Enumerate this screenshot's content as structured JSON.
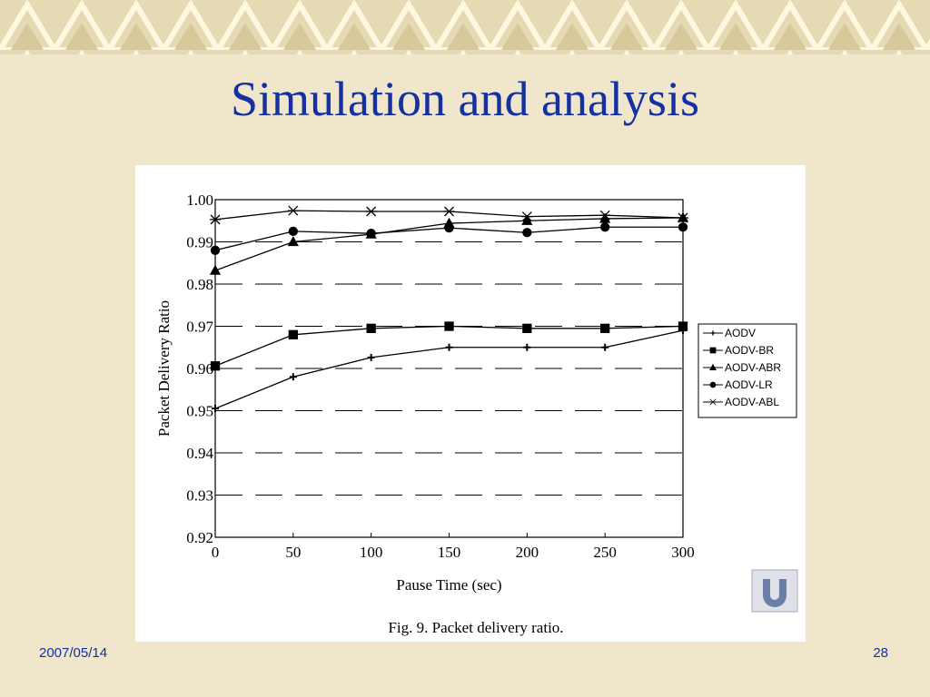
{
  "slide": {
    "title": "Simulation and analysis",
    "date": "2007/05/14",
    "page": "28"
  },
  "chart_data": {
    "type": "line",
    "xlabel": "Pause Time (sec)",
    "ylabel": "Packet Delivery Ratio",
    "caption": "Fig. 9. Packet delivery ratio.",
    "x": [
      0,
      50,
      100,
      150,
      200,
      250,
      300
    ],
    "xlim": [
      0,
      300
    ],
    "xticks": [
      0,
      50,
      100,
      150,
      200,
      250,
      300
    ],
    "ylim": [
      0.92,
      1.0
    ],
    "yticks": [
      0.92,
      0.93,
      0.94,
      0.95,
      0.96,
      0.97,
      0.98,
      0.99,
      {
        "value": 1,
        "label": "1.00"
      }
    ],
    "grid": true,
    "legend": "right",
    "series": [
      {
        "name": "AODV",
        "color": "#000000",
        "marker": "plus",
        "values": [
          0.9505,
          0.958,
          0.9626,
          0.965,
          0.965,
          0.965,
          0.969
        ]
      },
      {
        "name": "AODV-BR",
        "color": "#000000",
        "marker": "square",
        "values": [
          0.9606,
          0.968,
          0.9695,
          0.97,
          0.9695,
          0.9695,
          0.97
        ]
      },
      {
        "name": "AODV-ABR",
        "color": "#000000",
        "marker": "triangle",
        "values": [
          0.9832,
          0.99,
          0.9918,
          0.9944,
          0.995,
          0.9955,
          0.9957
        ]
      },
      {
        "name": "AODV-LR",
        "color": "#000000",
        "marker": "circle",
        "values": [
          0.988,
          0.9925,
          0.992,
          0.9933,
          0.9922,
          0.9935,
          0.9935
        ]
      },
      {
        "name": "AODV-ABL",
        "color": "#000000",
        "marker": "star",
        "values": [
          0.9953,
          0.9974,
          0.9972,
          0.9972,
          0.996,
          0.9963,
          0.9957
        ]
      }
    ]
  }
}
